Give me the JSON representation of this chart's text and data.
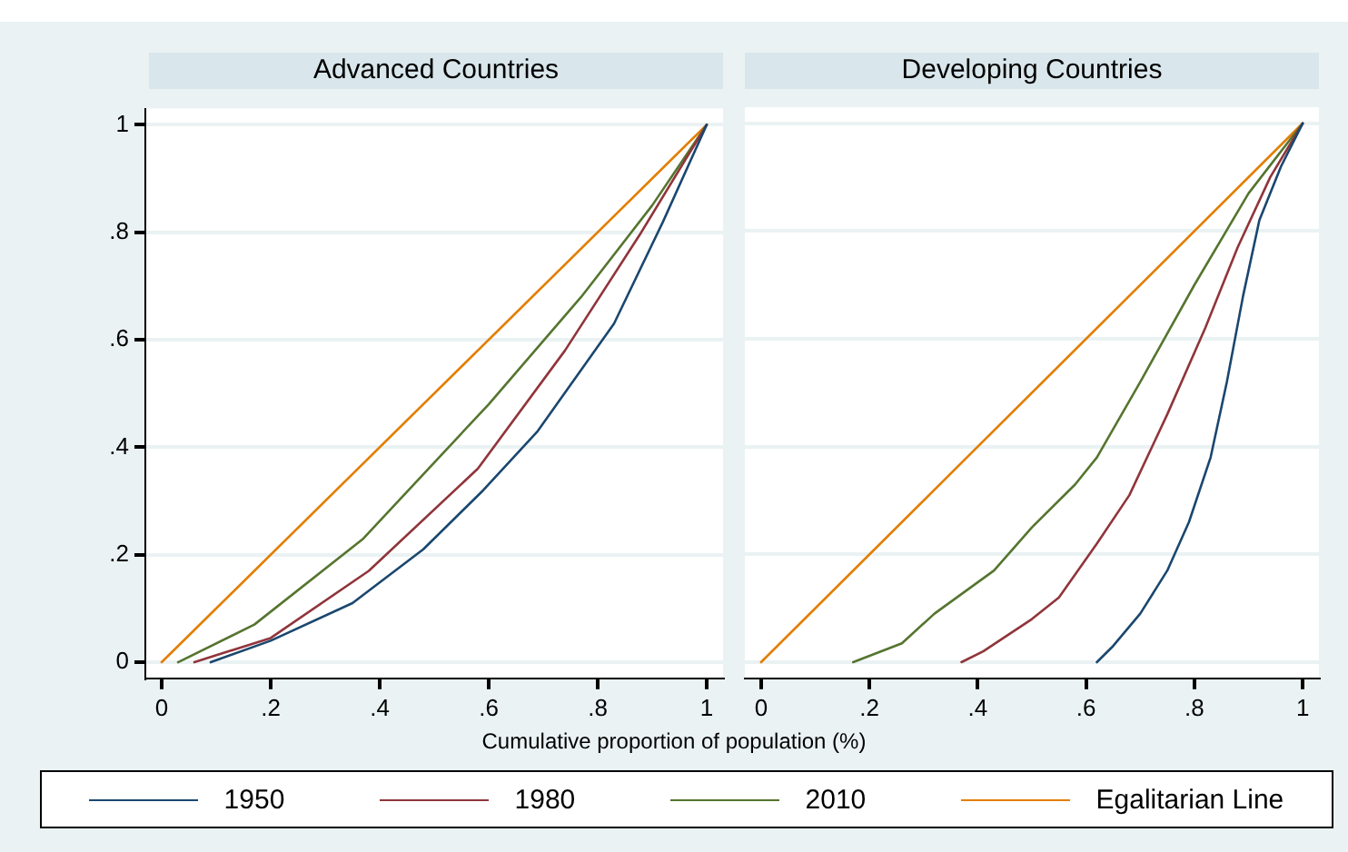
{
  "chart_data": [
    {
      "type": "line",
      "title": "Advanced Countries",
      "xlabel": "Cumulative proportion of population (%)",
      "xlim": [
        -0.03,
        1.03
      ],
      "ylim": [
        -0.03,
        1.03
      ],
      "xticks": [
        {
          "value": 0,
          "label": "0"
        },
        {
          "value": 0.2,
          "label": ".2"
        },
        {
          "value": 0.4,
          "label": ".4"
        },
        {
          "value": 0.6,
          "label": ".6"
        },
        {
          "value": 0.8,
          "label": ".8"
        },
        {
          "value": 1,
          "label": "1"
        }
      ],
      "yticks": [
        {
          "value": 0,
          "label": "0"
        },
        {
          "value": 0.2,
          "label": ".2"
        },
        {
          "value": 0.4,
          "label": ".4"
        },
        {
          "value": 0.6,
          "label": ".6"
        },
        {
          "value": 0.8,
          "label": ".8"
        },
        {
          "value": 1,
          "label": "1"
        }
      ],
      "grid": "y",
      "legend": "bottom",
      "line_style": "solid",
      "marker": "none",
      "series": [
        {
          "name": "1950",
          "color": "#1a476f",
          "x": [
            0.09,
            0.2,
            0.35,
            0.48,
            0.59,
            0.69,
            0.83,
            0.92,
            1
          ],
          "values": [
            0,
            0.04,
            0.11,
            0.21,
            0.32,
            0.43,
            0.63,
            0.82,
            1
          ]
        },
        {
          "name": "1980",
          "color": "#90353b",
          "x": [
            0.06,
            0.2,
            0.38,
            0.58,
            0.74,
            0.88,
            1
          ],
          "values": [
            0,
            0.045,
            0.17,
            0.36,
            0.58,
            0.8,
            1
          ]
        },
        {
          "name": "2010",
          "color": "#55752f",
          "x": [
            0.03,
            0.17,
            0.37,
            0.6,
            0.77,
            0.9,
            1
          ],
          "values": [
            0,
            0.07,
            0.23,
            0.48,
            0.68,
            0.85,
            1
          ]
        },
        {
          "name": "Egalitarian Line",
          "color": "#e37e00",
          "x": [
            0,
            1
          ],
          "values": [
            0,
            1
          ]
        }
      ]
    },
    {
      "type": "line",
      "title": "Developing Countries",
      "xlim": [
        -0.03,
        1.03
      ],
      "ylim": [
        -0.03,
        1.03
      ],
      "xticks": [
        {
          "value": 0,
          "label": "0"
        },
        {
          "value": 0.2,
          "label": ".2"
        },
        {
          "value": 0.4,
          "label": ".4"
        },
        {
          "value": 0.6,
          "label": ".6"
        },
        {
          "value": 0.8,
          "label": ".8"
        },
        {
          "value": 1,
          "label": "1"
        }
      ],
      "yticks": [
        0,
        0.2,
        0.4,
        0.6,
        0.8,
        1
      ],
      "grid": "y",
      "tick_labels": "x",
      "line_style": "solid",
      "marker": "none",
      "series": [
        {
          "color": "#1a476f",
          "x": [
            0.62,
            0.65,
            0.7,
            0.75,
            0.79,
            0.83,
            0.86,
            0.89,
            0.92,
            0.96,
            1
          ],
          "values": [
            0,
            0.03,
            0.09,
            0.17,
            0.26,
            0.38,
            0.52,
            0.68,
            0.82,
            0.92,
            1
          ]
        },
        {
          "color": "#90353b",
          "x": [
            0.37,
            0.41,
            0.5,
            0.55,
            0.62,
            0.68,
            0.75,
            0.82,
            0.88,
            0.94,
            1
          ],
          "values": [
            0,
            0.02,
            0.08,
            0.12,
            0.22,
            0.31,
            0.46,
            0.62,
            0.77,
            0.9,
            1
          ]
        },
        {
          "color": "#55752f",
          "x": [
            0.17,
            0.26,
            0.32,
            0.43,
            0.5,
            0.58,
            0.62,
            0.7,
            0.8,
            0.9,
            1
          ],
          "values": [
            0,
            0.035,
            0.09,
            0.17,
            0.25,
            0.33,
            0.38,
            0.52,
            0.7,
            0.87,
            1
          ]
        },
        {
          "color": "#e37e00",
          "x": [
            0,
            1
          ],
          "values": [
            0,
            1
          ]
        }
      ]
    }
  ]
}
